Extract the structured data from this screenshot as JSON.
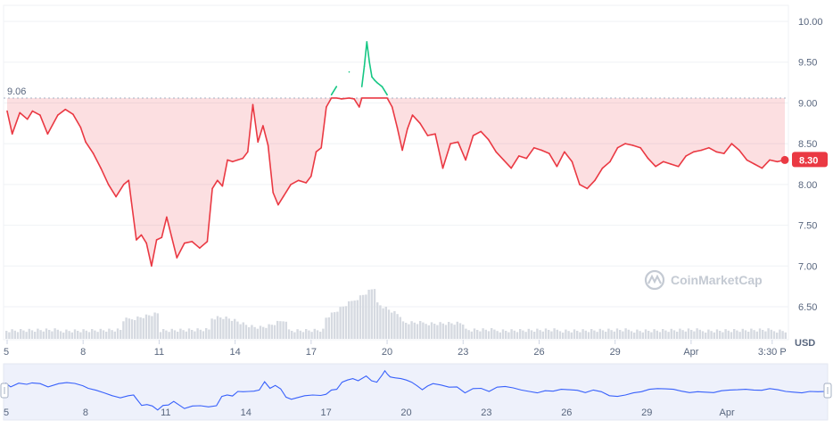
{
  "chart_data": {
    "type": "line",
    "unit": "USD",
    "reference_value": "9.06",
    "current_value": "8.30",
    "watermark": "CoinMarketCap",
    "y_ticks": [
      "10.00",
      "9.50",
      "9.00",
      "8.50",
      "8.00",
      "7.50",
      "7.00",
      "6.50"
    ],
    "ylim": [
      6.3,
      10.15
    ],
    "x_ticks": [
      "5",
      "8",
      "11",
      "14",
      "17",
      "20",
      "23",
      "26",
      "29",
      "Apr",
      "3:30 P"
    ],
    "nav_x_ticks": [
      "5",
      "8",
      "11",
      "14",
      "17",
      "20",
      "23",
      "26",
      "29",
      "Apr"
    ],
    "x_range_days": [
      5,
      35.7
    ],
    "series": [
      {
        "x": [
          5.0,
          5.2,
          5.5,
          5.8,
          6.0,
          6.3,
          6.6,
          7.0,
          7.3,
          7.6,
          7.9,
          8.1,
          8.4,
          8.7,
          9.0,
          9.3,
          9.6,
          9.8,
          9.9,
          10.1,
          10.3,
          10.5,
          10.7,
          10.9,
          11.1,
          11.3,
          11.5,
          11.7,
          12.0,
          12.3,
          12.6,
          12.9,
          13.1,
          13.3,
          13.5,
          13.7,
          13.9,
          14.1,
          14.3,
          14.5,
          14.7,
          14.9,
          15.1,
          15.3,
          15.5,
          15.7,
          15.9,
          16.2,
          16.5,
          16.8,
          17.0,
          17.2,
          17.4,
          17.6,
          17.8,
          18.0,
          18.2,
          18.5,
          18.7,
          18.9,
          19.0,
          19.1,
          19.2,
          19.3,
          19.4,
          19.5,
          19.6,
          19.8,
          20.0,
          20.2,
          20.4,
          20.6,
          20.8,
          21.0,
          21.3,
          21.6,
          21.9,
          22.2,
          22.5,
          22.8,
          23.1,
          23.4,
          23.7,
          24.0,
          24.3,
          24.6,
          24.9,
          25.2,
          25.5,
          25.8,
          26.1,
          26.4,
          26.7,
          27.0,
          27.3,
          27.6,
          27.9,
          28.2,
          28.5,
          28.8,
          29.1,
          29.4,
          29.7,
          30.0,
          30.3,
          30.6,
          30.9,
          31.2,
          31.5,
          31.8,
          32.1,
          32.4,
          32.7,
          33.0,
          33.3,
          33.6,
          33.9,
          34.2,
          34.5,
          34.8,
          35.1,
          35.4,
          35.7
        ],
        "y": [
          8.9,
          8.62,
          8.88,
          8.8,
          8.9,
          8.85,
          8.62,
          8.85,
          8.92,
          8.86,
          8.7,
          8.52,
          8.38,
          8.2,
          8.0,
          7.85,
          8.0,
          8.05,
          7.8,
          7.32,
          7.38,
          7.28,
          7.0,
          7.32,
          7.35,
          7.6,
          7.35,
          7.1,
          7.28,
          7.3,
          7.22,
          7.3,
          7.95,
          8.05,
          7.98,
          8.3,
          8.28,
          8.3,
          8.32,
          8.4,
          8.98,
          8.52,
          8.72,
          8.48,
          7.9,
          7.75,
          7.85,
          8.0,
          8.05,
          8.02,
          8.1,
          8.4,
          8.45,
          8.95,
          9.1,
          9.2,
          9.05,
          9.38,
          9.05,
          8.95,
          9.2,
          9.45,
          9.75,
          9.5,
          9.32,
          9.28,
          9.25,
          9.2,
          9.1,
          8.95,
          8.7,
          8.42,
          8.68,
          8.85,
          8.75,
          8.6,
          8.62,
          8.2,
          8.5,
          8.52,
          8.3,
          8.6,
          8.65,
          8.55,
          8.4,
          8.3,
          8.2,
          8.35,
          8.32,
          8.45,
          8.42,
          8.38,
          8.22,
          8.4,
          8.28,
          8.0,
          7.95,
          8.05,
          8.2,
          8.28,
          8.45,
          8.5,
          8.48,
          8.45,
          8.32,
          8.22,
          8.28,
          8.25,
          8.22,
          8.35,
          8.4,
          8.42,
          8.45,
          8.4,
          8.38,
          8.5,
          8.42,
          8.3,
          8.25,
          8.2,
          8.3,
          8.28,
          8.3
        ]
      }
    ]
  }
}
